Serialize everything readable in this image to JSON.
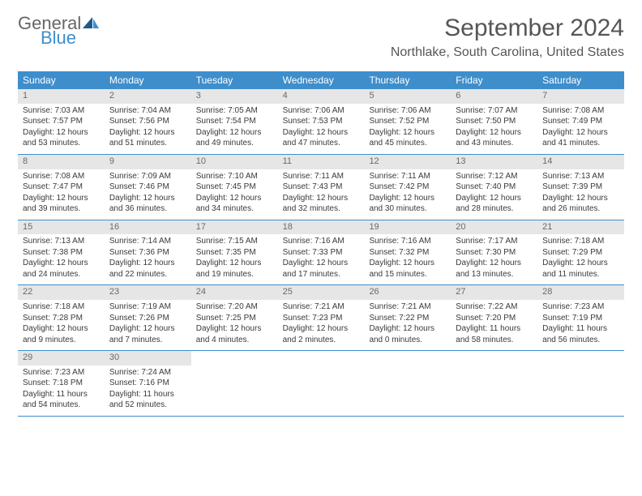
{
  "logo": {
    "general": "General",
    "blue": "Blue"
  },
  "title": "September 2024",
  "location": "Northlake, South Carolina, United States",
  "colors": {
    "header_bg": "#3e8ecc",
    "header_text": "#ffffff",
    "daynum_bg": "#e6e6e6",
    "daynum_text": "#6a6a6a",
    "body_text": "#3a3a3a",
    "title_text": "#565656",
    "row_border": "#3e8ecc"
  },
  "weekdays": [
    "Sunday",
    "Monday",
    "Tuesday",
    "Wednesday",
    "Thursday",
    "Friday",
    "Saturday"
  ],
  "days": [
    {
      "n": "1",
      "sr": "Sunrise: 7:03 AM",
      "ss": "Sunset: 7:57 PM",
      "d1": "Daylight: 12 hours",
      "d2": "and 53 minutes."
    },
    {
      "n": "2",
      "sr": "Sunrise: 7:04 AM",
      "ss": "Sunset: 7:56 PM",
      "d1": "Daylight: 12 hours",
      "d2": "and 51 minutes."
    },
    {
      "n": "3",
      "sr": "Sunrise: 7:05 AM",
      "ss": "Sunset: 7:54 PM",
      "d1": "Daylight: 12 hours",
      "d2": "and 49 minutes."
    },
    {
      "n": "4",
      "sr": "Sunrise: 7:06 AM",
      "ss": "Sunset: 7:53 PM",
      "d1": "Daylight: 12 hours",
      "d2": "and 47 minutes."
    },
    {
      "n": "5",
      "sr": "Sunrise: 7:06 AM",
      "ss": "Sunset: 7:52 PM",
      "d1": "Daylight: 12 hours",
      "d2": "and 45 minutes."
    },
    {
      "n": "6",
      "sr": "Sunrise: 7:07 AM",
      "ss": "Sunset: 7:50 PM",
      "d1": "Daylight: 12 hours",
      "d2": "and 43 minutes."
    },
    {
      "n": "7",
      "sr": "Sunrise: 7:08 AM",
      "ss": "Sunset: 7:49 PM",
      "d1": "Daylight: 12 hours",
      "d2": "and 41 minutes."
    },
    {
      "n": "8",
      "sr": "Sunrise: 7:08 AM",
      "ss": "Sunset: 7:47 PM",
      "d1": "Daylight: 12 hours",
      "d2": "and 39 minutes."
    },
    {
      "n": "9",
      "sr": "Sunrise: 7:09 AM",
      "ss": "Sunset: 7:46 PM",
      "d1": "Daylight: 12 hours",
      "d2": "and 36 minutes."
    },
    {
      "n": "10",
      "sr": "Sunrise: 7:10 AM",
      "ss": "Sunset: 7:45 PM",
      "d1": "Daylight: 12 hours",
      "d2": "and 34 minutes."
    },
    {
      "n": "11",
      "sr": "Sunrise: 7:11 AM",
      "ss": "Sunset: 7:43 PM",
      "d1": "Daylight: 12 hours",
      "d2": "and 32 minutes."
    },
    {
      "n": "12",
      "sr": "Sunrise: 7:11 AM",
      "ss": "Sunset: 7:42 PM",
      "d1": "Daylight: 12 hours",
      "d2": "and 30 minutes."
    },
    {
      "n": "13",
      "sr": "Sunrise: 7:12 AM",
      "ss": "Sunset: 7:40 PM",
      "d1": "Daylight: 12 hours",
      "d2": "and 28 minutes."
    },
    {
      "n": "14",
      "sr": "Sunrise: 7:13 AM",
      "ss": "Sunset: 7:39 PM",
      "d1": "Daylight: 12 hours",
      "d2": "and 26 minutes."
    },
    {
      "n": "15",
      "sr": "Sunrise: 7:13 AM",
      "ss": "Sunset: 7:38 PM",
      "d1": "Daylight: 12 hours",
      "d2": "and 24 minutes."
    },
    {
      "n": "16",
      "sr": "Sunrise: 7:14 AM",
      "ss": "Sunset: 7:36 PM",
      "d1": "Daylight: 12 hours",
      "d2": "and 22 minutes."
    },
    {
      "n": "17",
      "sr": "Sunrise: 7:15 AM",
      "ss": "Sunset: 7:35 PM",
      "d1": "Daylight: 12 hours",
      "d2": "and 19 minutes."
    },
    {
      "n": "18",
      "sr": "Sunrise: 7:16 AM",
      "ss": "Sunset: 7:33 PM",
      "d1": "Daylight: 12 hours",
      "d2": "and 17 minutes."
    },
    {
      "n": "19",
      "sr": "Sunrise: 7:16 AM",
      "ss": "Sunset: 7:32 PM",
      "d1": "Daylight: 12 hours",
      "d2": "and 15 minutes."
    },
    {
      "n": "20",
      "sr": "Sunrise: 7:17 AM",
      "ss": "Sunset: 7:30 PM",
      "d1": "Daylight: 12 hours",
      "d2": "and 13 minutes."
    },
    {
      "n": "21",
      "sr": "Sunrise: 7:18 AM",
      "ss": "Sunset: 7:29 PM",
      "d1": "Daylight: 12 hours",
      "d2": "and 11 minutes."
    },
    {
      "n": "22",
      "sr": "Sunrise: 7:18 AM",
      "ss": "Sunset: 7:28 PM",
      "d1": "Daylight: 12 hours",
      "d2": "and 9 minutes."
    },
    {
      "n": "23",
      "sr": "Sunrise: 7:19 AM",
      "ss": "Sunset: 7:26 PM",
      "d1": "Daylight: 12 hours",
      "d2": "and 7 minutes."
    },
    {
      "n": "24",
      "sr": "Sunrise: 7:20 AM",
      "ss": "Sunset: 7:25 PM",
      "d1": "Daylight: 12 hours",
      "d2": "and 4 minutes."
    },
    {
      "n": "25",
      "sr": "Sunrise: 7:21 AM",
      "ss": "Sunset: 7:23 PM",
      "d1": "Daylight: 12 hours",
      "d2": "and 2 minutes."
    },
    {
      "n": "26",
      "sr": "Sunrise: 7:21 AM",
      "ss": "Sunset: 7:22 PM",
      "d1": "Daylight: 12 hours",
      "d2": "and 0 minutes."
    },
    {
      "n": "27",
      "sr": "Sunrise: 7:22 AM",
      "ss": "Sunset: 7:20 PM",
      "d1": "Daylight: 11 hours",
      "d2": "and 58 minutes."
    },
    {
      "n": "28",
      "sr": "Sunrise: 7:23 AM",
      "ss": "Sunset: 7:19 PM",
      "d1": "Daylight: 11 hours",
      "d2": "and 56 minutes."
    },
    {
      "n": "29",
      "sr": "Sunrise: 7:23 AM",
      "ss": "Sunset: 7:18 PM",
      "d1": "Daylight: 11 hours",
      "d2": "and 54 minutes."
    },
    {
      "n": "30",
      "sr": "Sunrise: 7:24 AM",
      "ss": "Sunset: 7:16 PM",
      "d1": "Daylight: 11 hours",
      "d2": "and 52 minutes."
    }
  ]
}
